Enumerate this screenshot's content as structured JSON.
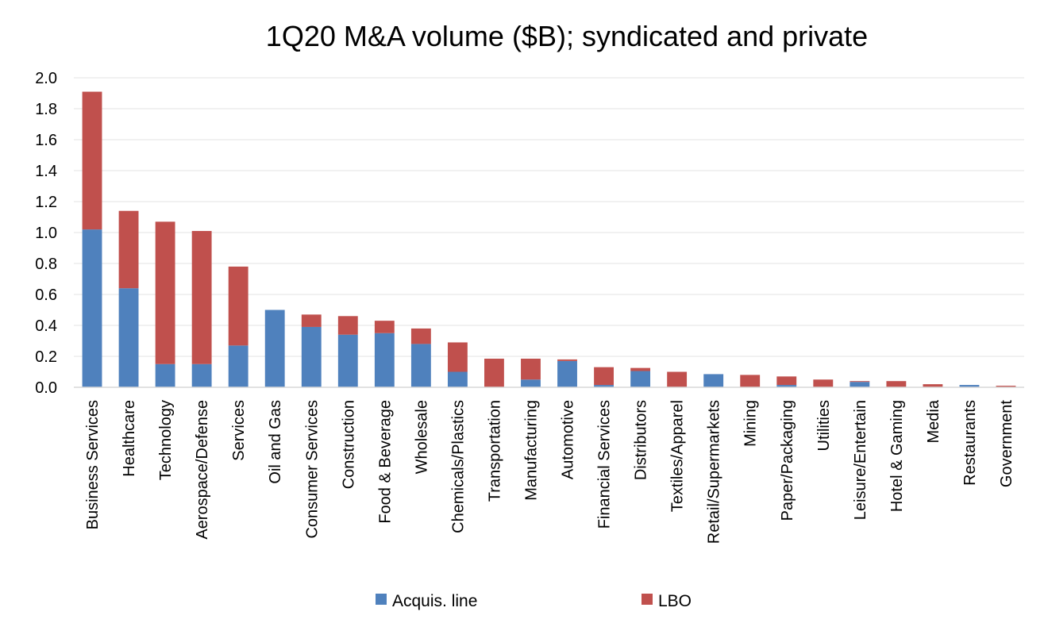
{
  "chart_data": {
    "type": "bar",
    "stacked": true,
    "title": "1Q20 M&A volume ($B); syndicated and private",
    "xlabel": "",
    "ylabel": "",
    "ylim": [
      0,
      2.0
    ],
    "yticks": [
      "0.0",
      "0.2",
      "0.4",
      "0.6",
      "0.8",
      "1.0",
      "1.2",
      "1.4",
      "1.6",
      "1.8",
      "2.0"
    ],
    "grid": true,
    "legend_position": "bottom",
    "categories": [
      "Business Services",
      "Healthcare",
      "Technology",
      "Aerospace/Defense",
      "Services",
      "Oil and Gas",
      "Consumer Services",
      "Construction",
      "Food & Beverage",
      "Wholesale",
      "Chemicals/Plastics",
      "Transportation",
      "Manufacturing",
      "Automotive",
      "Financial Services",
      "Distributors",
      "Textiles/Apparel",
      "Retail/Supermarkets",
      "Mining",
      "Paper/Packaging",
      "Utilities",
      "Leisure/Entertain",
      "Hotel & Gaming",
      "Media",
      "Restaurants",
      "Government"
    ],
    "series": [
      {
        "name": "Acquis. line",
        "color": "#4F81BD",
        "values": [
          1.02,
          0.64,
          0.15,
          0.15,
          0.27,
          0.5,
          0.39,
          0.34,
          0.35,
          0.28,
          0.1,
          0.0,
          0.05,
          0.17,
          0.015,
          0.105,
          0.0,
          0.085,
          0.0,
          0.015,
          0.0,
          0.035,
          0.0,
          0.0,
          0.015,
          0.0
        ]
      },
      {
        "name": "LBO",
        "color": "#C0504D",
        "values": [
          0.89,
          0.5,
          0.92,
          0.86,
          0.51,
          0.0,
          0.08,
          0.12,
          0.08,
          0.1,
          0.19,
          0.185,
          0.135,
          0.01,
          0.115,
          0.02,
          0.1,
          0.0,
          0.08,
          0.055,
          0.05,
          0.005,
          0.04,
          0.02,
          0.0,
          0.01
        ]
      }
    ]
  }
}
